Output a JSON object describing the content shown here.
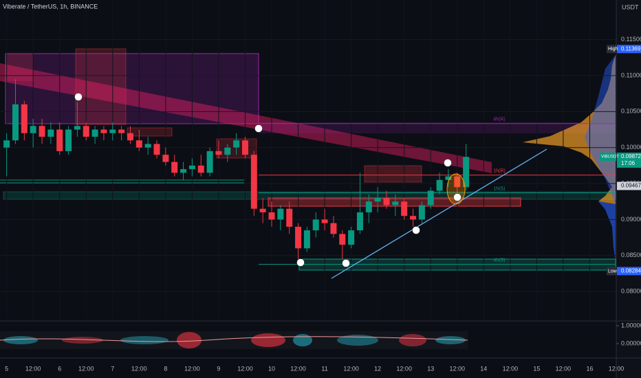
{
  "chart_data": {
    "type": "candlestick",
    "title": "Viberate / TetherUS, 1h, BINANCE",
    "y_axis_unit": "USDT",
    "up_color": "#089981",
    "down_color": "#f23645",
    "x": [
      0,
      4,
      8,
      12,
      16,
      20,
      24,
      28,
      32,
      36,
      40,
      44,
      48,
      52,
      56,
      60,
      64,
      68,
      72,
      76,
      80,
      84,
      88,
      92,
      96,
      100,
      104,
      108,
      112,
      116,
      120,
      124,
      128,
      132,
      136,
      140,
      144,
      148,
      152,
      156,
      160,
      164,
      168,
      172,
      176,
      180,
      184,
      188,
      192,
      196,
      200,
      204,
      208
    ],
    "open": [
      0.1,
      0.101,
      0.106,
      0.102,
      0.103,
      0.1015,
      0.1025,
      0.0995,
      0.1025,
      0.103,
      0.1015,
      0.1025,
      0.102,
      0.1025,
      0.102,
      0.101,
      0.1,
      0.1005,
      0.099,
      0.098,
      0.0965,
      0.097,
      0.0975,
      0.0965,
      0.0995,
      0.099,
      0.1,
      0.101,
      0.099,
      0.0915,
      0.091,
      0.09,
      0.0915,
      0.089,
      0.086,
      0.0885,
      0.09,
      0.0895,
      0.088,
      0.0865,
      0.0885,
      0.091,
      0.0925,
      0.093,
      0.092,
      0.0925,
      0.0905,
      0.09,
      0.092,
      0.094,
      0.0955,
      0.096,
      0.0945
    ],
    "high": [
      0.102,
      0.1095,
      0.1065,
      0.104,
      0.104,
      0.1035,
      0.1035,
      0.103,
      0.1063,
      0.1035,
      0.103,
      0.103,
      0.1035,
      0.103,
      0.103,
      0.1025,
      0.1015,
      0.101,
      0.1,
      0.099,
      0.098,
      0.0985,
      0.099,
      0.1,
      0.101,
      0.1005,
      0.102,
      0.1015,
      0.0995,
      0.093,
      0.0925,
      0.092,
      0.0925,
      0.0895,
      0.089,
      0.091,
      0.0915,
      0.0905,
      0.0885,
      0.089,
      0.0965,
      0.0935,
      0.0945,
      0.094,
      0.0935,
      0.093,
      0.0915,
      0.0925,
      0.0945,
      0.0965,
      0.097,
      0.0965,
      0.1005
    ],
    "low": [
      0.096,
      0.1005,
      0.101,
      0.1,
      0.1005,
      0.1005,
      0.099,
      0.099,
      0.1015,
      0.101,
      0.1005,
      0.101,
      0.101,
      0.101,
      0.1005,
      0.0995,
      0.099,
      0.0985,
      0.0975,
      0.096,
      0.0955,
      0.096,
      0.096,
      0.096,
      0.0985,
      0.098,
      0.099,
      0.0985,
      0.0905,
      0.0895,
      0.089,
      0.0885,
      0.088,
      0.0845,
      0.0855,
      0.0875,
      0.0885,
      0.0875,
      0.0845,
      0.086,
      0.088,
      0.0895,
      0.091,
      0.0915,
      0.0905,
      0.09,
      0.089,
      0.0895,
      0.0915,
      0.0935,
      0.0945,
      0.0935,
      0.094
    ],
    "close": [
      0.101,
      0.106,
      0.102,
      0.103,
      0.1015,
      0.1025,
      0.0995,
      0.1025,
      0.103,
      0.1015,
      0.1025,
      0.102,
      0.1025,
      0.102,
      0.101,
      0.1,
      0.1005,
      0.099,
      0.098,
      0.0965,
      0.097,
      0.0975,
      0.0965,
      0.0995,
      0.099,
      0.1,
      0.101,
      0.099,
      0.0915,
      0.091,
      0.09,
      0.0915,
      0.089,
      0.086,
      0.0885,
      0.09,
      0.0895,
      0.088,
      0.0865,
      0.0885,
      0.091,
      0.0925,
      0.093,
      0.092,
      0.0925,
      0.0905,
      0.09,
      0.092,
      0.094,
      0.0955,
      0.096,
      0.0945,
      0.0987
    ],
    "xlim": [
      -3,
      276
    ],
    "xticks": [
      {
        "value": 0,
        "label": "5"
      },
      {
        "value": 12,
        "label": "12:00"
      },
      {
        "value": 24,
        "label": "6"
      },
      {
        "value": 36,
        "label": "12:00"
      },
      {
        "value": 48,
        "label": "7"
      },
      {
        "value": 60,
        "label": "12:00"
      },
      {
        "value": 72,
        "label": "8"
      },
      {
        "value": 84,
        "label": "12:00"
      },
      {
        "value": 96,
        "label": "9"
      },
      {
        "value": 108,
        "label": "12:00"
      },
      {
        "value": 120,
        "label": "10"
      },
      {
        "value": 132,
        "label": "12:00"
      },
      {
        "value": 144,
        "label": "11"
      },
      {
        "value": 156,
        "label": "12:00"
      },
      {
        "value": 168,
        "label": "12"
      },
      {
        "value": 180,
        "label": "12:00"
      },
      {
        "value": 192,
        "label": "13"
      },
      {
        "value": 204,
        "label": "12:00"
      },
      {
        "value": 216,
        "label": "14"
      },
      {
        "value": 228,
        "label": "12:00"
      },
      {
        "value": 240,
        "label": "15"
      },
      {
        "value": 252,
        "label": "12:00"
      },
      {
        "value": 264,
        "label": "16"
      },
      {
        "value": 276,
        "label": "12:00"
      }
    ],
    "ylim": [
      0.0761,
      0.1205
    ],
    "yticks": [
      {
        "value": 0.08,
        "label": "0.08000"
      },
      {
        "value": 0.085,
        "label": "0.08500"
      },
      {
        "value": 0.09,
        "label": "0.09000"
      },
      {
        "value": 0.095,
        "label": "0.09500"
      },
      {
        "value": 0.1,
        "label": "0.10000"
      },
      {
        "value": 0.105,
        "label": "0.10500"
      },
      {
        "value": 0.11,
        "label": "0.11000"
      },
      {
        "value": 0.115,
        "label": "0.11500"
      }
    ],
    "price_markers": [
      {
        "name": "High",
        "value": 0.11369,
        "color": "#2962ff"
      },
      {
        "name": "VIBUSDT",
        "value": 0.09872,
        "color": "#089981",
        "countdown": "17:06"
      },
      {
        "value": 0.09467,
        "color": "#d1d4dc"
      },
      {
        "name": "Low",
        "value": 0.08284,
        "color": "#2962ff"
      }
    ],
    "levels": [
      {
        "text": "4h(R)",
        "value": 0.10334,
        "color": "#9c27b0"
      },
      {
        "text": "1h(R)",
        "value": 0.09618,
        "color": "#f23645"
      },
      {
        "text": "1h(S)",
        "value": 0.0937,
        "color": "#089981"
      },
      {
        "text": "4h(S)",
        "value": 0.08378,
        "color": "#089981"
      }
    ],
    "oscillator": {
      "ylim": [
        -0.77,
        1.23
      ],
      "yticks": [
        {
          "value": 1,
          "label": "1.00000"
        },
        {
          "value": 0,
          "label": "0.00000"
        }
      ]
    }
  }
}
